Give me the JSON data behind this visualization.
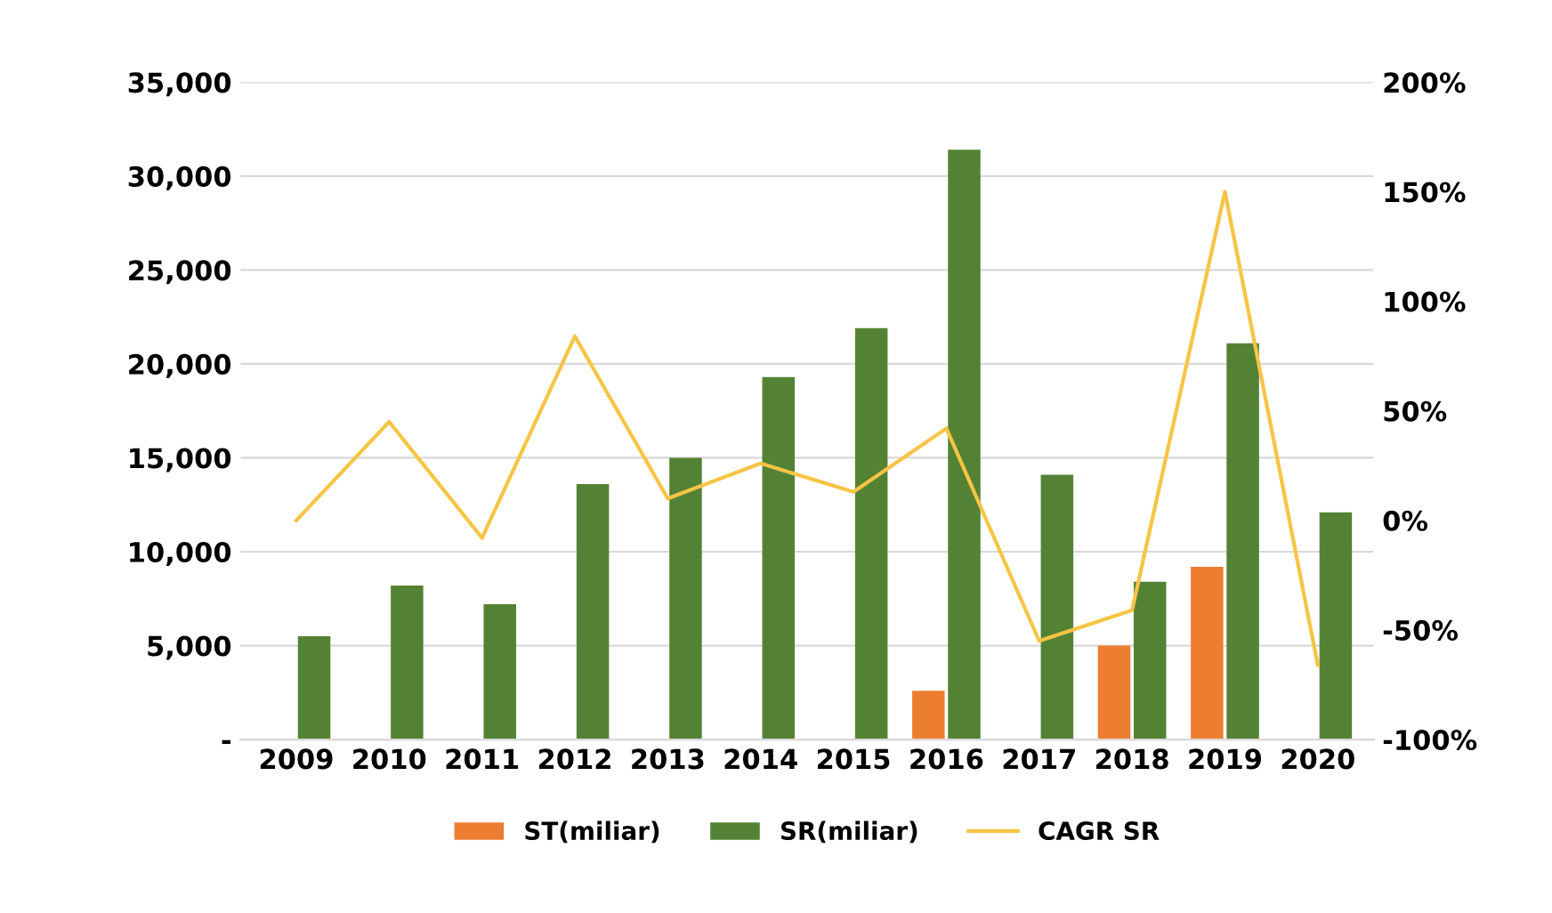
{
  "chart_data": {
    "type": "bar",
    "categories": [
      "2009",
      "2010",
      "2011",
      "2012",
      "2013",
      "2014",
      "2015",
      "2016",
      "2017",
      "2018",
      "2019",
      "2020"
    ],
    "series": [
      {
        "name": "ST(miliar)",
        "color": "#ed7d31",
        "values": [
          null,
          null,
          null,
          null,
          null,
          null,
          null,
          2600,
          null,
          5000,
          9200,
          null
        ]
      },
      {
        "name": "SR(miliar)",
        "color": "#548235",
        "values": [
          5500,
          8200,
          7200,
          13600,
          15000,
          19300,
          21900,
          31400,
          14100,
          8400,
          21100,
          12100
        ]
      },
      {
        "name": "CAGR SR",
        "type": "line",
        "axis": "y2",
        "color": "#f7c444",
        "values": [
          0,
          45,
          -8,
          84,
          10,
          26,
          13,
          42,
          -55,
          -41,
          150,
          -66
        ]
      }
    ],
    "ylim": [
      0,
      35000
    ],
    "yticks": [
      {
        "value": 0,
        "label": "-"
      },
      {
        "value": 5000,
        "label": "5,000"
      },
      {
        "value": 10000,
        "label": "10,000"
      },
      {
        "value": 15000,
        "label": "15,000"
      },
      {
        "value": 20000,
        "label": "20,000"
      },
      {
        "value": 25000,
        "label": "25,000"
      },
      {
        "value": 30000,
        "label": "30,000"
      },
      {
        "value": 35000,
        "label": "35,000"
      }
    ],
    "y2lim": [
      -100,
      200
    ],
    "y2ticks": [
      {
        "value": -100,
        "label": "-100%"
      },
      {
        "value": -50,
        "label": "-50%"
      },
      {
        "value": 0,
        "label": "0%"
      },
      {
        "value": 50,
        "label": "50%"
      },
      {
        "value": 100,
        "label": "100%"
      },
      {
        "value": 150,
        "label": "150%"
      },
      {
        "value": 200,
        "label": "200%"
      }
    ],
    "grid": "y",
    "legend": "bottom",
    "marker": "none",
    "line_style": "solid"
  }
}
